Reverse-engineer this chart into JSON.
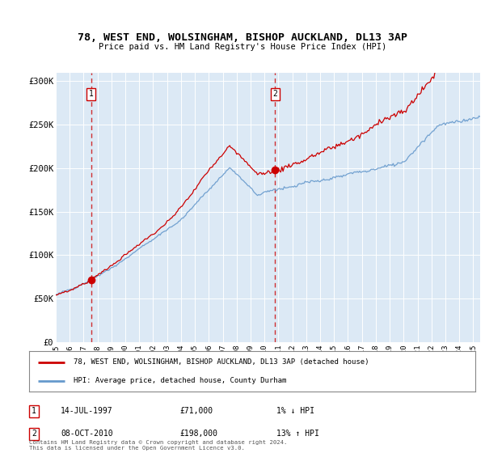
{
  "title": "78, WEST END, WOLSINGHAM, BISHOP AUCKLAND, DL13 3AP",
  "subtitle": "Price paid vs. HM Land Registry's House Price Index (HPI)",
  "plot_bg_color": "#dce9f5",
  "ylim": [
    0,
    310000
  ],
  "yticks": [
    0,
    50000,
    100000,
    150000,
    200000,
    250000,
    300000
  ],
  "ytick_labels": [
    "£0",
    "£50K",
    "£100K",
    "£150K",
    "£200K",
    "£250K",
    "£300K"
  ],
  "sale1": {
    "date_x": 1997.54,
    "price": 71000,
    "label": "1",
    "annotation": "14-JUL-1997",
    "amount": "£71,000",
    "hpi_rel": "1% ↓ HPI"
  },
  "sale2": {
    "date_x": 2010.77,
    "price": 198000,
    "label": "2",
    "annotation": "08-OCT-2010",
    "amount": "£198,000",
    "hpi_rel": "13% ↑ HPI"
  },
  "legend_label_red": "78, WEST END, WOLSINGHAM, BISHOP AUCKLAND, DL13 3AP (detached house)",
  "legend_label_blue": "HPI: Average price, detached house, County Durham",
  "footer": "Contains HM Land Registry data © Crown copyright and database right 2024.\nThis data is licensed under the Open Government Licence v3.0.",
  "red_color": "#cc0000",
  "blue_color": "#6699cc",
  "x_start": 1995.0,
  "x_end": 2025.5,
  "xtick_years": [
    1995,
    1996,
    1997,
    1998,
    1999,
    2000,
    2001,
    2002,
    2003,
    2004,
    2005,
    2006,
    2007,
    2008,
    2009,
    2010,
    2011,
    2012,
    2013,
    2014,
    2015,
    2016,
    2017,
    2018,
    2019,
    2020,
    2021,
    2022,
    2023,
    2024,
    2025
  ]
}
